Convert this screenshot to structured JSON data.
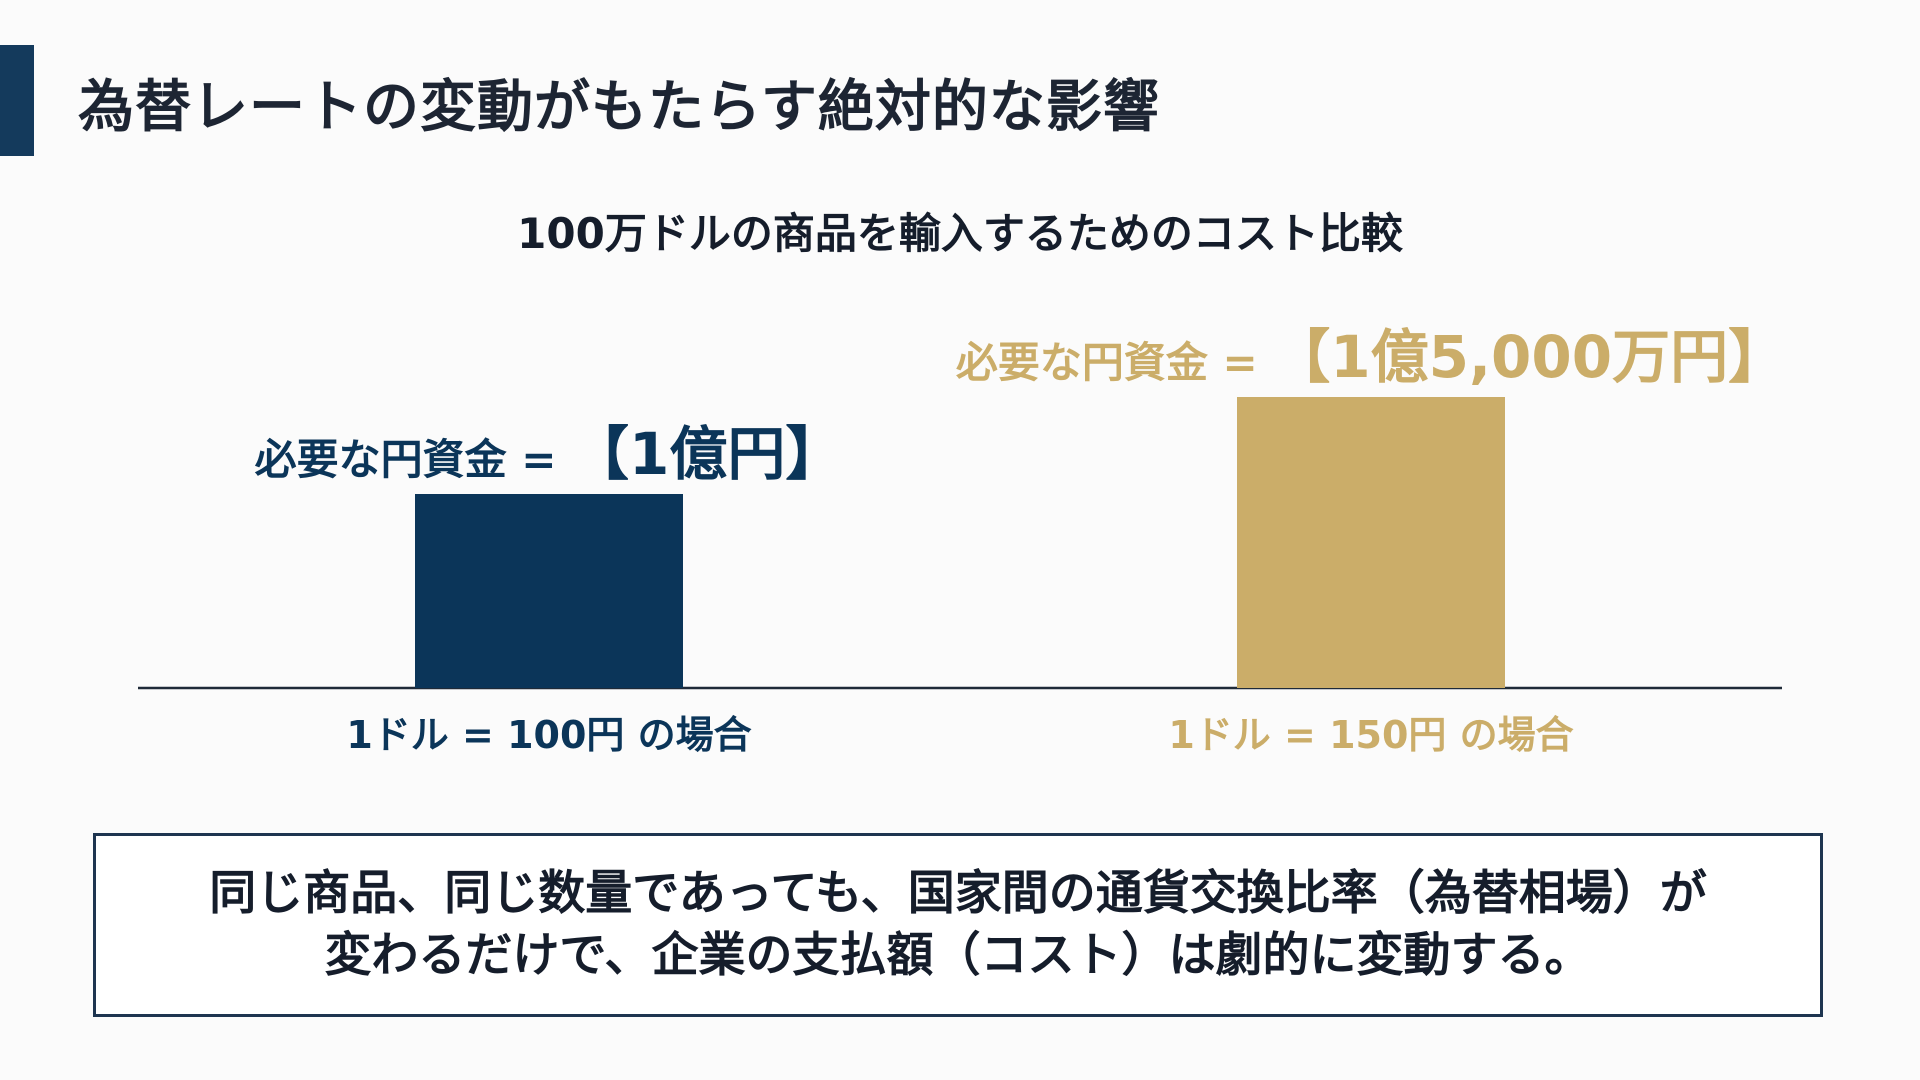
{
  "slide": {
    "title": "為替レートの変動がもたらす絶対的な影響"
  },
  "colors": {
    "accent": "#143a5c",
    "navy": "#0b3559",
    "gold": "#cbad69",
    "note_border": "#1e3550"
  },
  "chart_data": {
    "type": "bar",
    "title": "100万ドルの商品を輸入するためのコスト比較",
    "categories": [
      "1ドル = 100円 の場合",
      "1ドル = 150円 の場合"
    ],
    "values": [
      100000000,
      150000000
    ],
    "value_labels": [
      {
        "prefix": "必要な円資金 = ",
        "amount": "【1億円】"
      },
      {
        "prefix": "必要な円資金 = ",
        "amount": "【1億5,000万円】"
      }
    ],
    "bar_colors": [
      "#0b3559",
      "#cbad69"
    ],
    "xlabel": "",
    "ylabel": "",
    "grid": false,
    "legend": "none"
  },
  "note": {
    "line1": "同じ商品、同じ数量であっても、国家間の通貨交換比率（為替相場）が",
    "line2": "変わるだけで、企業の支払額（コスト）は劇的に変動する。"
  }
}
